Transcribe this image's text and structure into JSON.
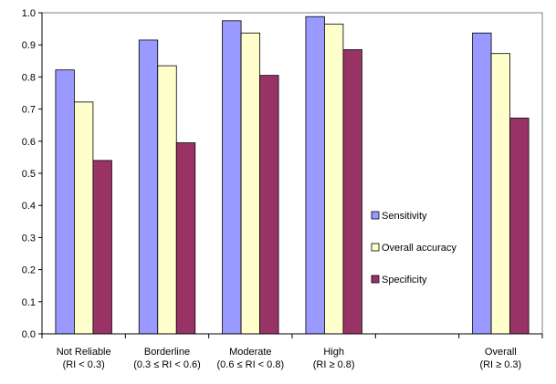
{
  "chart_data": {
    "type": "bar",
    "categories": [
      {
        "line1": "Not Reliable",
        "line2": "(RI < 0.3)"
      },
      {
        "line1": "Borderline",
        "line2": "(0.3 ≤ RI < 0.6)"
      },
      {
        "line1": "Moderate",
        "line2": "(0.6 ≤ RI < 0.8)"
      },
      {
        "line1": "High",
        "line2": "(RI ≥ 0.8)"
      },
      {
        "line1": "",
        "line2": ""
      },
      {
        "line1": "Overall",
        "line2": "(RI ≥ 0.3)"
      }
    ],
    "series": [
      {
        "name": "Sensitivity",
        "color": "#9999ff",
        "values": [
          0.822,
          0.915,
          0.975,
          0.988,
          null,
          0.937
        ]
      },
      {
        "name": "Overall accuracy",
        "color": "#ffffcc",
        "values": [
          0.722,
          0.835,
          0.937,
          0.965,
          null,
          0.873
        ]
      },
      {
        "name": "Specificity",
        "color": "#993366",
        "values": [
          0.54,
          0.595,
          0.805,
          0.885,
          null,
          0.672
        ]
      }
    ],
    "ylim": [
      0,
      1.0
    ],
    "yticks": [
      "0.0",
      "0.1",
      "0.2",
      "0.3",
      "0.4",
      "0.5",
      "0.6",
      "0.7",
      "0.8",
      "0.9",
      "1.0"
    ],
    "grid": false,
    "legend_position": "right-center"
  }
}
